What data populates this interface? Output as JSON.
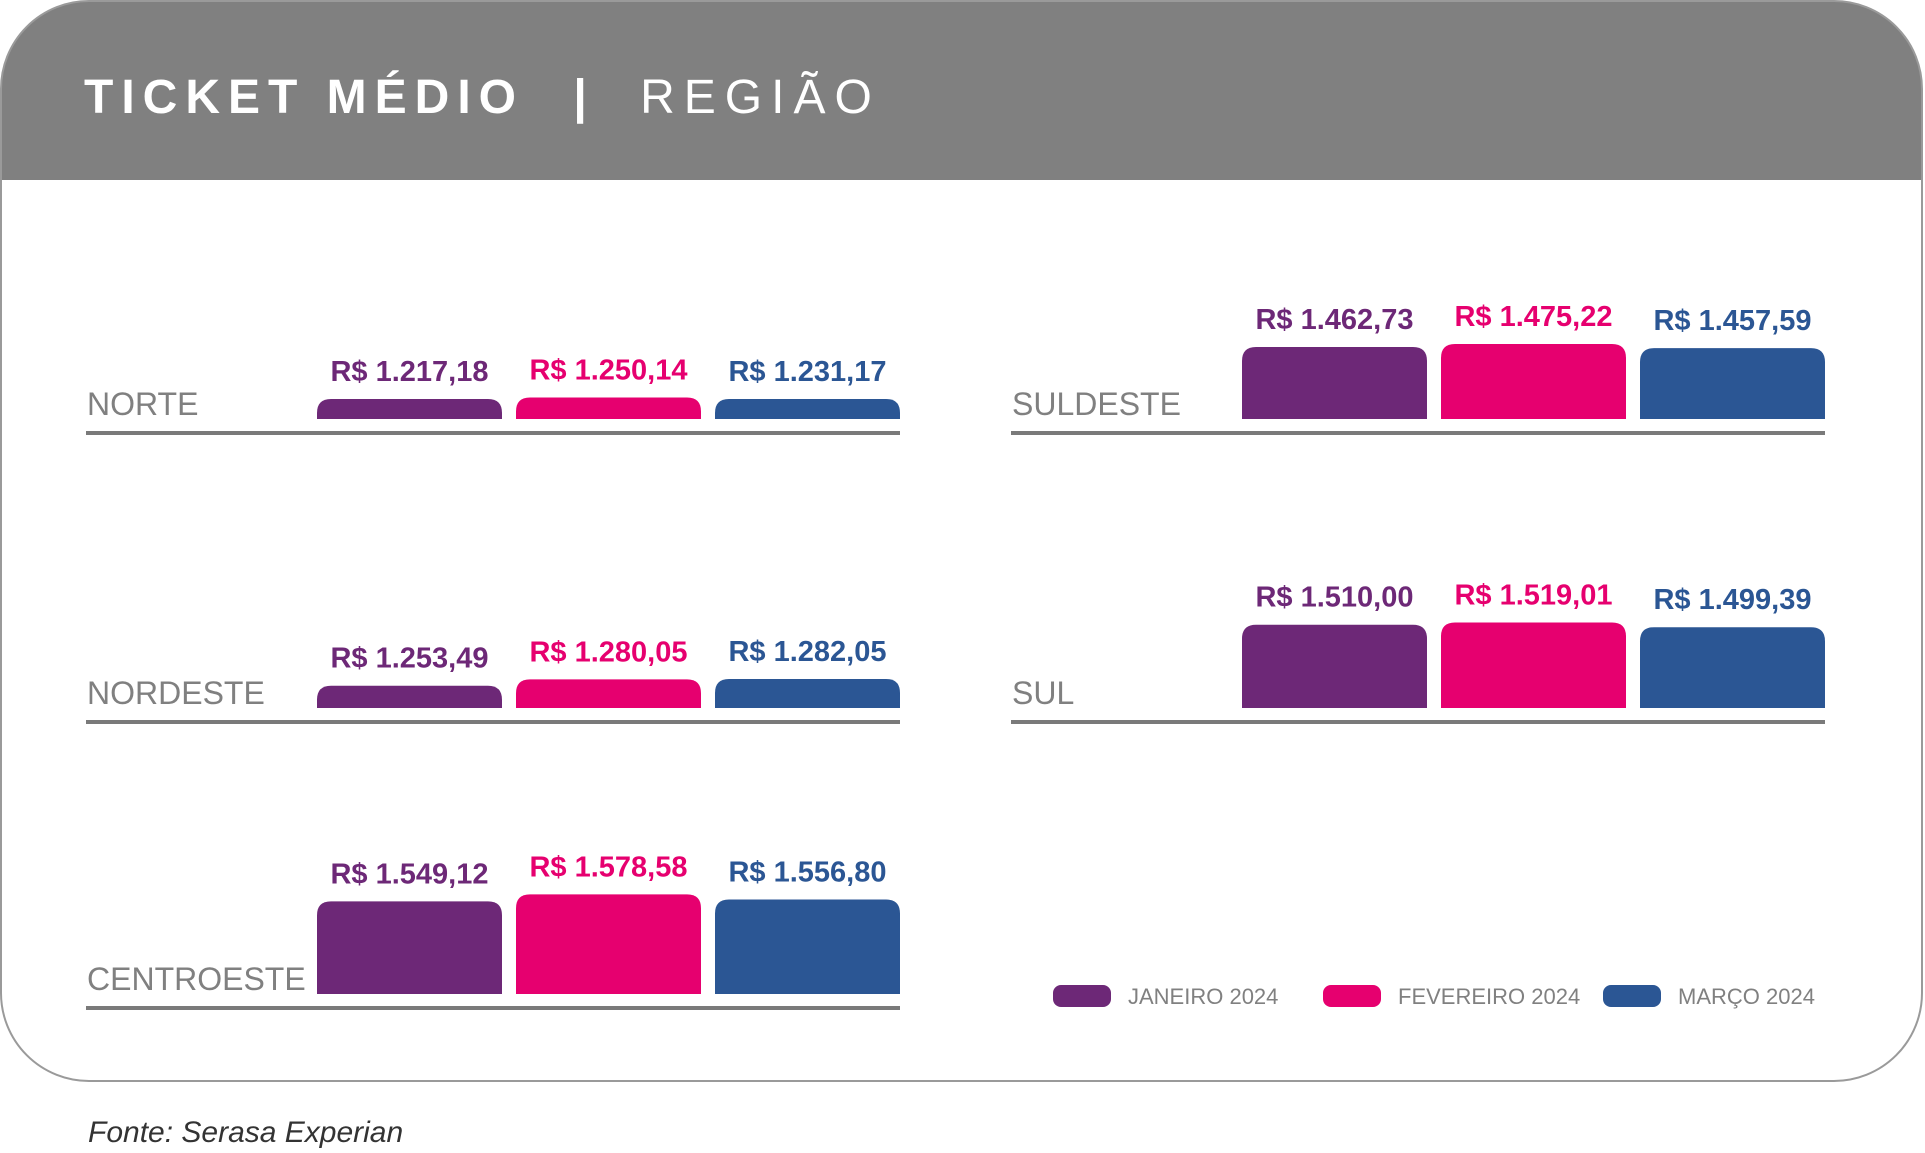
{
  "header": {
    "title": "TICKET MÉDIO",
    "separator": "|",
    "subtitle": "REGIÃO"
  },
  "source": "Fonte: Serasa Experian",
  "colors": {
    "header_bg": "#808080",
    "frame": "#9a9a9a",
    "baseline": "#7a7a7a",
    "region_label": "#808080",
    "legend_text": "#808080"
  },
  "chart_data": {
    "type": "bar",
    "title": "TICKET MÉDIO | REGIÃO",
    "value_format": "R$ brasileiro",
    "legend_position": "bottom-right",
    "series": [
      {
        "name": "JANEIRO 2024",
        "color": "#6d2877"
      },
      {
        "name": "FEVEREIRO 2024",
        "color": "#e6006f"
      },
      {
        "name": "MARÇO 2024",
        "color": "#2b5694"
      }
    ],
    "regions": [
      {
        "name": "NORTE",
        "values": [
          1217.18,
          1250.14,
          1231.17
        ],
        "labels": [
          "R$ 1.217,18",
          "R$ 1.250,14",
          "R$ 1.231,17"
        ]
      },
      {
        "name": "SULDESTE",
        "values": [
          1462.73,
          1475.22,
          1457.59
        ],
        "labels": [
          "R$ 1.462,73",
          "R$ 1.475,22",
          "R$ 1.457,59"
        ]
      },
      {
        "name": "NORDESTE",
        "values": [
          1253.49,
          1280.05,
          1282.05
        ],
        "labels": [
          "R$ 1.253,49",
          "R$ 1.280,05",
          "R$ 1.282,05"
        ]
      },
      {
        "name": "SUL",
        "values": [
          1510.0,
          1519.01,
          1499.39
        ],
        "labels": [
          "R$ 1.510,00",
          "R$ 1.519,01",
          "R$ 1.499,39"
        ]
      },
      {
        "name": "CENTROESTE",
        "values": [
          1549.12,
          1578.58,
          1556.8
        ],
        "labels": [
          "R$ 1.549,12",
          "R$ 1.578,58",
          "R$ 1.556,80"
        ]
      }
    ]
  }
}
